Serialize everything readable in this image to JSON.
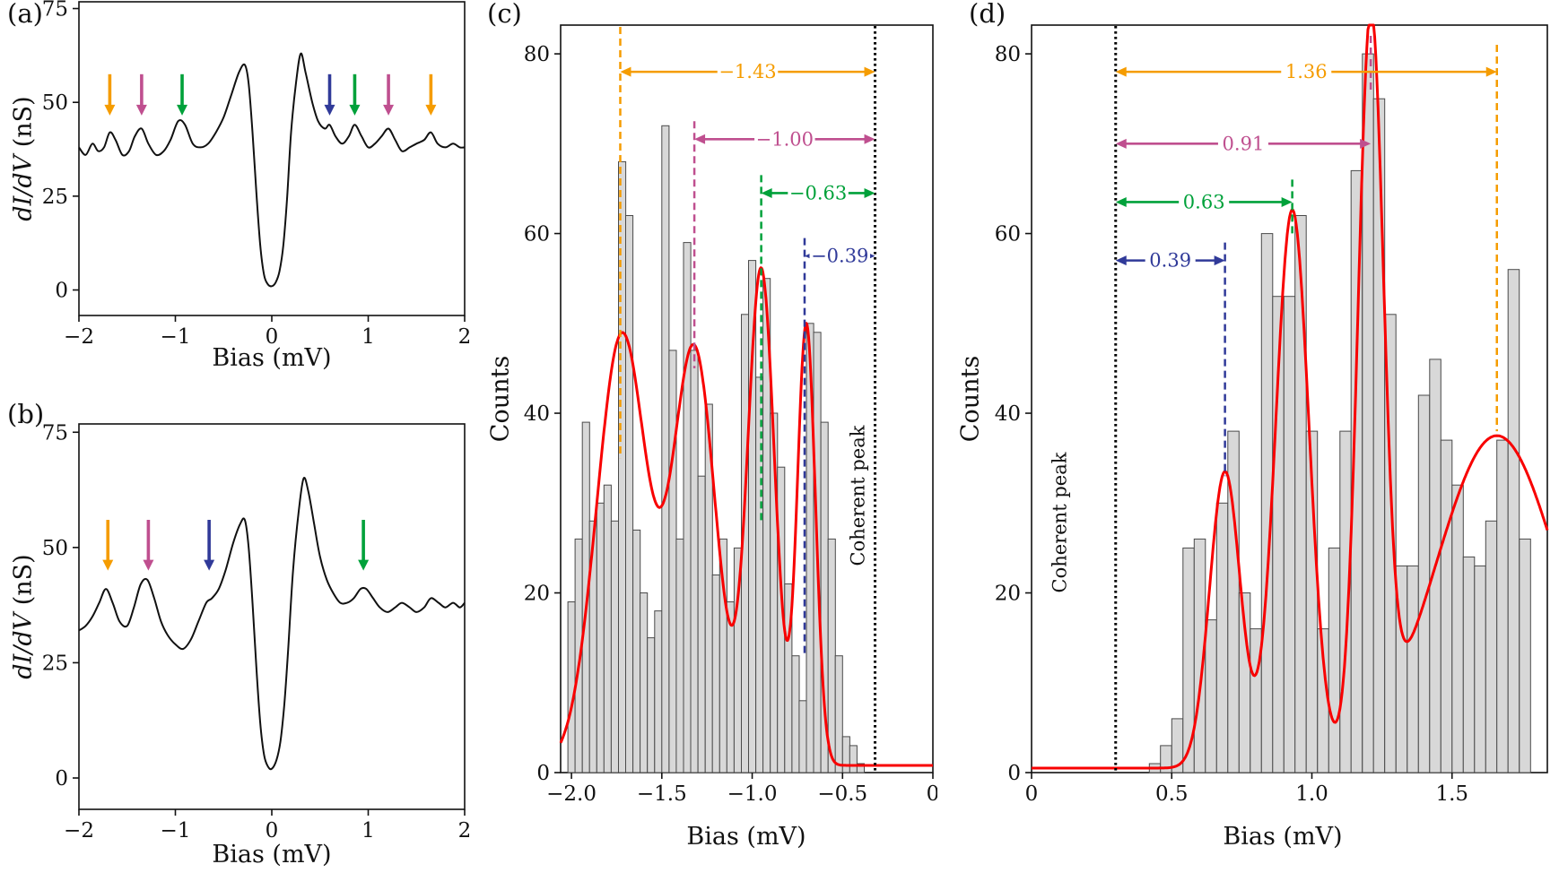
{
  "colors": {
    "orange": "#f59c00",
    "magenta": "#bf4f8f",
    "green": "#00a13a",
    "blue": "#303a99",
    "red": "#f80000",
    "bar_fill": "#d8d8d8",
    "bar_edge": "#4a4a4a",
    "frame": "#111111"
  },
  "chart_data": [
    {
      "id": "a",
      "type": "line",
      "letter": "(a)",
      "ylabel_math": "dI/dV",
      "ylabel_unit": " (nS)",
      "xlabel": "Bias (mV)",
      "xlim": [
        -2,
        2
      ],
      "ylim": [
        -6.8,
        76.8
      ],
      "xticks": {
        "values": [
          -2,
          -1,
          0,
          1,
          2
        ],
        "labels": [
          "−2",
          "−1",
          "0",
          "1",
          "2"
        ]
      },
      "yticks": {
        "values": [
          0,
          25,
          50,
          75
        ],
        "labels": [
          "0",
          "25",
          "50",
          "75"
        ]
      },
      "curve_points": [
        [
          -2,
          38
        ],
        [
          -1.93,
          36
        ],
        [
          -1.86,
          39
        ],
        [
          -1.8,
          37
        ],
        [
          -1.74,
          38
        ],
        [
          -1.68,
          42
        ],
        [
          -1.62,
          40
        ],
        [
          -1.55,
          36
        ],
        [
          -1.48,
          37
        ],
        [
          -1.42,
          41
        ],
        [
          -1.35,
          43
        ],
        [
          -1.28,
          39
        ],
        [
          -1.2,
          36
        ],
        [
          -1.12,
          37
        ],
        [
          -1.05,
          40
        ],
        [
          -0.97,
          45
        ],
        [
          -0.9,
          44
        ],
        [
          -0.82,
          39
        ],
        [
          -0.74,
          38
        ],
        [
          -0.66,
          39
        ],
        [
          -0.58,
          42
        ],
        [
          -0.5,
          46
        ],
        [
          -0.42,
          52
        ],
        [
          -0.34,
          58
        ],
        [
          -0.28,
          60
        ],
        [
          -0.24,
          55
        ],
        [
          -0.2,
          42
        ],
        [
          -0.16,
          26
        ],
        [
          -0.12,
          12
        ],
        [
          -0.08,
          4
        ],
        [
          -0.04,
          1.5
        ],
        [
          0,
          1
        ],
        [
          0.04,
          2
        ],
        [
          0.08,
          5
        ],
        [
          0.12,
          12
        ],
        [
          0.16,
          25
        ],
        [
          0.2,
          42
        ],
        [
          0.25,
          55
        ],
        [
          0.3,
          63
        ],
        [
          0.35,
          58
        ],
        [
          0.42,
          50
        ],
        [
          0.48,
          45
        ],
        [
          0.55,
          43
        ],
        [
          0.6,
          44
        ],
        [
          0.66,
          41
        ],
        [
          0.73,
          39
        ],
        [
          0.8,
          41
        ],
        [
          0.86,
          44
        ],
        [
          0.93,
          41
        ],
        [
          1,
          38
        ],
        [
          1.07,
          39
        ],
        [
          1.14,
          41
        ],
        [
          1.21,
          43
        ],
        [
          1.28,
          40
        ],
        [
          1.35,
          37
        ],
        [
          1.43,
          38
        ],
        [
          1.5,
          39
        ],
        [
          1.58,
          40
        ],
        [
          1.65,
          42
        ],
        [
          1.72,
          39
        ],
        [
          1.8,
          38
        ],
        [
          1.88,
          39
        ],
        [
          1.95,
          38
        ],
        [
          2,
          38
        ]
      ],
      "arrows": [
        {
          "x": -1.68,
          "color": "orange"
        },
        {
          "x": -1.35,
          "color": "magenta"
        },
        {
          "x": -0.93,
          "color": "green"
        },
        {
          "x": 0.6,
          "color": "blue"
        },
        {
          "x": 0.86,
          "color": "green"
        },
        {
          "x": 1.21,
          "color": "magenta"
        },
        {
          "x": 1.65,
          "color": "orange"
        }
      ],
      "arrow_tail_y": 57.5,
      "arrow_tip_y": 46.5
    },
    {
      "id": "b",
      "type": "line",
      "letter": "(b)",
      "ylabel_math": "dI/dV",
      "ylabel_unit": " (nS)",
      "xlabel": "Bias (mV)",
      "xlim": [
        -2,
        2
      ],
      "ylim": [
        -6.8,
        76.8
      ],
      "xticks": {
        "values": [
          -2,
          -1,
          0,
          1,
          2
        ],
        "labels": [
          "−2",
          "−1",
          "0",
          "1",
          "2"
        ]
      },
      "yticks": {
        "values": [
          0,
          25,
          50,
          75
        ],
        "labels": [
          "0",
          "25",
          "50",
          "75"
        ]
      },
      "curve_points": [
        [
          -2,
          32
        ],
        [
          -1.93,
          33
        ],
        [
          -1.86,
          35
        ],
        [
          -1.79,
          38
        ],
        [
          -1.72,
          41
        ],
        [
          -1.65,
          38
        ],
        [
          -1.58,
          34
        ],
        [
          -1.5,
          33
        ],
        [
          -1.43,
          37
        ],
        [
          -1.36,
          42
        ],
        [
          -1.29,
          43
        ],
        [
          -1.22,
          39
        ],
        [
          -1.15,
          34
        ],
        [
          -1.08,
          31
        ],
        [
          -1,
          29
        ],
        [
          -0.92,
          28
        ],
        [
          -0.84,
          30
        ],
        [
          -0.76,
          34
        ],
        [
          -0.68,
          38
        ],
        [
          -0.62,
          39
        ],
        [
          -0.55,
          41
        ],
        [
          -0.48,
          45
        ],
        [
          -0.4,
          51
        ],
        [
          -0.33,
          55
        ],
        [
          -0.28,
          56
        ],
        [
          -0.24,
          50
        ],
        [
          -0.2,
          38
        ],
        [
          -0.16,
          24
        ],
        [
          -0.12,
          12
        ],
        [
          -0.08,
          5
        ],
        [
          -0.04,
          2.5
        ],
        [
          0,
          2
        ],
        [
          0.05,
          4
        ],
        [
          0.09,
          8
        ],
        [
          0.13,
          16
        ],
        [
          0.17,
          28
        ],
        [
          0.22,
          45
        ],
        [
          0.28,
          58
        ],
        [
          0.33,
          65
        ],
        [
          0.38,
          62
        ],
        [
          0.44,
          55
        ],
        [
          0.5,
          48
        ],
        [
          0.57,
          43
        ],
        [
          0.64,
          40
        ],
        [
          0.71,
          38
        ],
        [
          0.78,
          38
        ],
        [
          0.85,
          39
        ],
        [
          0.92,
          41
        ],
        [
          0.98,
          41
        ],
        [
          1.05,
          39
        ],
        [
          1.12,
          37
        ],
        [
          1.2,
          36
        ],
        [
          1.28,
          37
        ],
        [
          1.35,
          38
        ],
        [
          1.43,
          37
        ],
        [
          1.5,
          36
        ],
        [
          1.58,
          37
        ],
        [
          1.65,
          39
        ],
        [
          1.73,
          38
        ],
        [
          1.8,
          37
        ],
        [
          1.88,
          38
        ],
        [
          1.95,
          37
        ],
        [
          2,
          38
        ]
      ],
      "arrows": [
        {
          "x": -1.7,
          "color": "orange"
        },
        {
          "x": -1.28,
          "color": "magenta"
        },
        {
          "x": -0.65,
          "color": "blue"
        },
        {
          "x": 0.95,
          "color": "green"
        }
      ],
      "arrow_tail_y": 56,
      "arrow_tip_y": 45
    },
    {
      "id": "c",
      "type": "bar",
      "letter": "(c)",
      "ylabel": "Counts",
      "xlabel": "Bias (mV)",
      "xlim": [
        -2.06,
        0
      ],
      "ylim": [
        0,
        83.2
      ],
      "xticks": {
        "values": [
          -2,
          -1.5,
          -1,
          -0.5,
          0
        ],
        "labels": [
          "−2.0",
          "−1.5",
          "−1.0",
          "−0.5",
          "0"
        ]
      },
      "yticks": {
        "values": [
          0,
          20,
          40,
          60,
          80
        ],
        "labels": [
          "0",
          "20",
          "40",
          "60",
          "80"
        ]
      },
      "histogram": {
        "bin_start": -2.02,
        "bin_width": 0.04,
        "counts": [
          19,
          26,
          39,
          28,
          30,
          32,
          28,
          68,
          62,
          27,
          20,
          15,
          18,
          72,
          47,
          26,
          59,
          47,
          33,
          41,
          22,
          26,
          19,
          25,
          51,
          57,
          44,
          55,
          40,
          34,
          21,
          13,
          8,
          50,
          49,
          39,
          26,
          13,
          4,
          3,
          1
        ]
      },
      "fit_baseline": 0.8,
      "fit_gaussians": [
        {
          "mu": -1.72,
          "amp": 48,
          "sigma": 0.14
        },
        {
          "mu": -1.32,
          "amp": 46,
          "sigma": 0.12
        },
        {
          "mu": -0.95,
          "amp": 55,
          "sigma": 0.075
        },
        {
          "mu": -0.7,
          "amp": 49,
          "sigma": 0.05
        }
      ],
      "ref_line": {
        "x": -0.32,
        "label": "Coherent peak"
      },
      "markers": [
        {
          "value_label": "−1.43",
          "color": "orange",
          "x": -1.73,
          "arrow_y": 78,
          "dash_top": 83,
          "dash_bottom": 35
        },
        {
          "value_label": "−1.00",
          "color": "magenta",
          "x": -1.32,
          "arrow_y": 70.5,
          "dash_top": 72.5,
          "dash_bottom": 45
        },
        {
          "value_label": "−0.63",
          "color": "green",
          "x": -0.95,
          "arrow_y": 64.5,
          "dash_top": 66.5,
          "dash_bottom": 28
        },
        {
          "value_label": "−0.39",
          "color": "blue",
          "x": -0.71,
          "arrow_y": 57.5,
          "dash_top": 59.5,
          "dash_bottom": 13
        }
      ]
    },
    {
      "id": "d",
      "type": "bar",
      "letter": "(d)",
      "ylabel": "Counts",
      "xlabel": "Bias (mV)",
      "xlim": [
        0,
        1.84
      ],
      "ylim": [
        0,
        83.2
      ],
      "xticks": {
        "values": [
          0,
          0.5,
          1,
          1.5
        ],
        "labels": [
          "0",
          "0.5",
          "1.0",
          "1.5"
        ]
      },
      "yticks": {
        "values": [
          0,
          20,
          40,
          60,
          80
        ],
        "labels": [
          "0",
          "20",
          "40",
          "60",
          "80"
        ]
      },
      "histogram": {
        "bin_start": 0.42,
        "bin_width": 0.04,
        "counts": [
          1,
          3,
          6,
          25,
          26,
          17,
          30,
          38,
          20,
          16,
          60,
          53,
          53,
          62,
          38,
          16,
          25,
          38,
          67,
          80,
          75,
          51,
          23,
          23,
          42,
          46,
          37,
          32,
          24,
          23,
          28,
          37,
          56,
          26
        ]
      },
      "fit_baseline": 0.5,
      "fit_gaussians": [
        {
          "mu": 0.69,
          "amp": 33,
          "sigma": 0.055
        },
        {
          "mu": 0.93,
          "amp": 62,
          "sigma": 0.06
        },
        {
          "mu": 1.21,
          "amp": 80,
          "sigma": 0.045
        },
        {
          "mu": 1.66,
          "amp": 37,
          "sigma": 0.22
        }
      ],
      "ref_line": {
        "x": 0.3,
        "label": "Coherent peak"
      },
      "markers": [
        {
          "value_label": "1.36",
          "color": "orange",
          "x": 1.66,
          "arrow_y": 78,
          "dash_top": 81,
          "dash_bottom": 38
        },
        {
          "value_label": "0.91",
          "color": "magenta",
          "x": 1.21,
          "arrow_y": 70,
          "dash_top": 82,
          "dash_bottom": 76
        },
        {
          "value_label": "0.63",
          "color": "green",
          "x": 0.93,
          "arrow_y": 63.5,
          "dash_top": 66,
          "dash_bottom": 60
        },
        {
          "value_label": "0.39",
          "color": "blue",
          "x": 0.69,
          "arrow_y": 57,
          "dash_top": 59,
          "dash_bottom": 33
        }
      ]
    }
  ]
}
